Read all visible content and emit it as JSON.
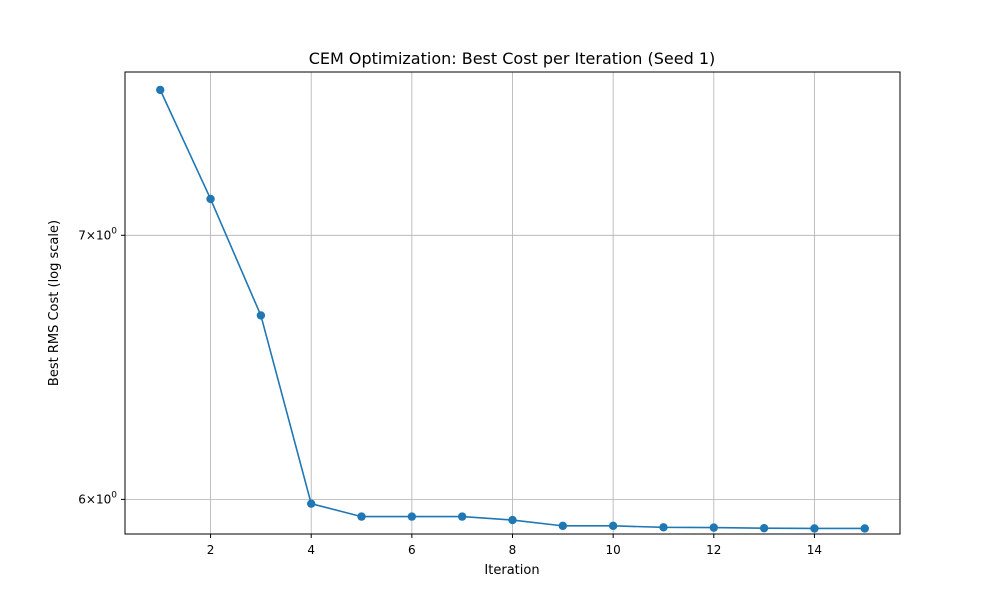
{
  "chart_data": {
    "type": "line",
    "title": "CEM Optimization: Best Cost per Iteration (Seed 1)",
    "xlabel": "Iteration",
    "ylabel": "Best RMS Cost (log scale)",
    "y_scale": "log",
    "grid": true,
    "xlim": [
      0.3,
      15.7
    ],
    "ylim": [
      5.88,
      7.7
    ],
    "x_ticks": [
      2,
      4,
      6,
      8,
      10,
      12,
      14
    ],
    "y_ticks": [
      {
        "value": 6,
        "base": "6",
        "exp": "0"
      },
      {
        "value": 7,
        "base": "7",
        "exp": "0"
      }
    ],
    "series": [
      {
        "color": "#1f77b4",
        "marker": "circle",
        "x": [
          1,
          2,
          3,
          4,
          5,
          6,
          7,
          8,
          9,
          10,
          11,
          12,
          13,
          14,
          15
        ],
        "y": [
          7.62,
          7.15,
          6.68,
          5.985,
          5.94,
          5.94,
          5.94,
          5.928,
          5.908,
          5.908,
          5.903,
          5.902,
          5.9,
          5.899,
          5.899
        ]
      }
    ]
  }
}
